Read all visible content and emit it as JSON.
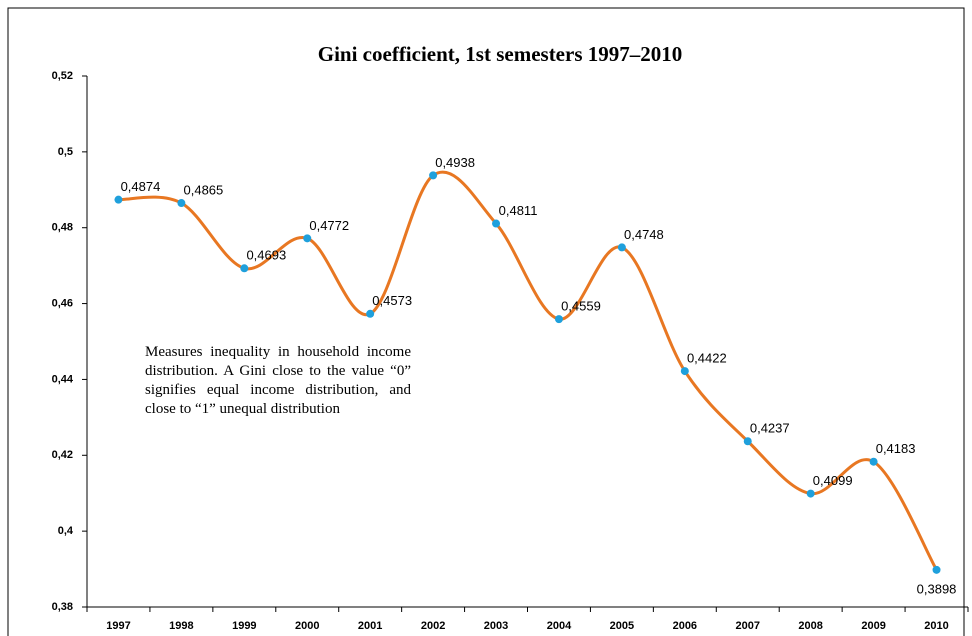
{
  "chart_data": {
    "type": "line",
    "title": "Gini coefficient, 1st semesters 1997–2010",
    "annotation": "Measures inequality in household income distribution. A Gini close to the value “0” signifies equal income distribution, and close to “1” unequal distribution",
    "categories": [
      "1997",
      "1998",
      "1999",
      "2000",
      "2001",
      "2002",
      "2003",
      "2004",
      "2005",
      "2006",
      "2007",
      "2008",
      "2009",
      "2010"
    ],
    "values": [
      0.4874,
      0.4865,
      0.4693,
      0.4772,
      0.4573,
      0.4938,
      0.4811,
      0.4559,
      0.4748,
      0.4422,
      0.4237,
      0.4099,
      0.4183,
      0.3898
    ],
    "value_labels": [
      "0,4874",
      "0,4865",
      "0,4693",
      "0,4772",
      "0,4573",
      "0,4938",
      "0,4811",
      "0,4559",
      "0,4748",
      "0,4422",
      "0,4237",
      "0,4099",
      "0,4183",
      "0,3898"
    ],
    "color": "#e87722",
    "marker_color": "#1fa0dc",
    "smooth": true,
    "ylim": [
      0.38,
      0.52
    ],
    "yticks": [
      {
        "value": 0.38,
        "label": "0,38"
      },
      {
        "value": 0.4,
        "label": "0,4"
      },
      {
        "value": 0.42,
        "label": "0,42"
      },
      {
        "value": 0.44,
        "label": "0,44"
      },
      {
        "value": 0.46,
        "label": "0,46"
      },
      {
        "value": 0.48,
        "label": "0,48"
      },
      {
        "value": 0.5,
        "label": "0,5"
      },
      {
        "value": 0.52,
        "label": "0,52"
      }
    ],
    "grid": false
  }
}
